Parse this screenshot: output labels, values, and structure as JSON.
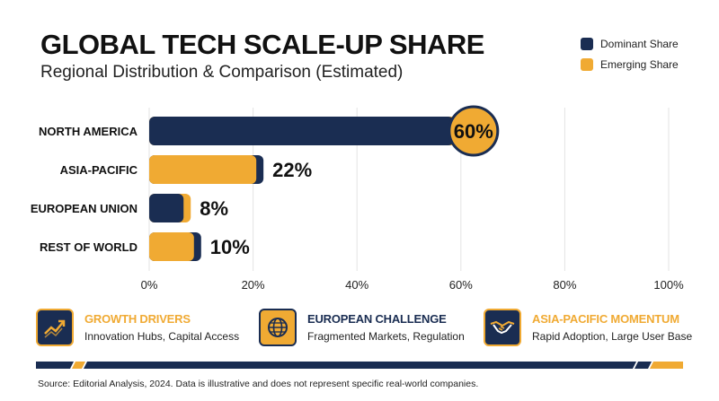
{
  "header": {
    "title": "GLOBAL TECH SCALE-UP SHARE",
    "subtitle": "Regional Distribution & Comparison (Estimated)"
  },
  "legend": [
    {
      "label": "Dominant Share",
      "color": "#1a2d52"
    },
    {
      "label": "Emerging Share",
      "color": "#f0aa33"
    }
  ],
  "chart_data": {
    "type": "bar",
    "orientation": "horizontal",
    "categories": [
      "NORTH AMERICA",
      "ASIA-PACIFIC",
      "EUROPEAN UNION",
      "REST OF WORLD"
    ],
    "values": [
      60,
      22,
      8,
      10
    ],
    "value_labels": [
      "60%",
      "22%",
      "8%",
      "10%"
    ],
    "bar_style": [
      "dominant",
      "emerging",
      "dominant",
      "emerging"
    ],
    "xlim": [
      0,
      100
    ],
    "x_ticks": [
      0,
      20,
      40,
      60,
      80,
      100
    ],
    "x_tick_labels": [
      "0%",
      "20%",
      "40%",
      "60%",
      "80%",
      "100%"
    ],
    "grid": true,
    "legend_position": "top-right",
    "colors": {
      "dominant": "#1a2d52",
      "emerging": "#f0aa33"
    }
  },
  "cards": [
    {
      "title": "GROWTH DRIVERS",
      "text": "Innovation Hubs, Capital Access",
      "icon": "growth-chart-icon"
    },
    {
      "title": "EUROPEAN CHALLENGE",
      "text": "Fragmented Markets, Regulation",
      "icon": "globe-icon"
    },
    {
      "title": "ASIA-PACIFIC MOMENTUM",
      "text": "Rapid Adoption, Large User Base",
      "icon": "handshake-icon"
    }
  ],
  "footer": {
    "source": "Source: Editorial Analysis, 2024. Data is illustrative and does not represent specific real-world companies."
  }
}
